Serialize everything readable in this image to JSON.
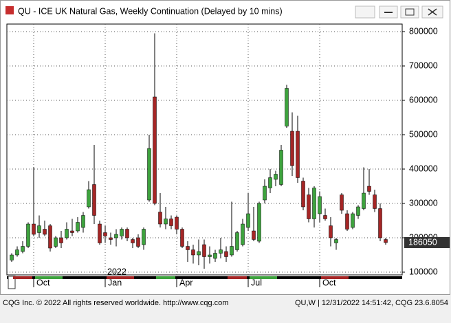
{
  "window_title": "QU - ICE UK Natural Gas, Weekly Continuation (Delayed by 10 mins)",
  "chart_data": {
    "type": "candlestick",
    "categories": [
      null,
      null,
      null,
      null,
      "Oct",
      null,
      null,
      null,
      null,
      null,
      null,
      null,
      null,
      null,
      null,
      null,
      null,
      "Jan",
      null,
      null,
      null,
      null,
      null,
      null,
      null,
      null,
      null,
      null,
      null,
      null,
      "Apr",
      null,
      null,
      null,
      null,
      null,
      null,
      null,
      null,
      null,
      null,
      null,
      null,
      "Jul",
      null,
      null,
      null,
      null,
      null,
      null,
      null,
      null,
      null,
      null,
      null,
      null,
      "Oct",
      null,
      null,
      null,
      null,
      null,
      null,
      null,
      null,
      null,
      null,
      null,
      null
    ],
    "year_label": "2022",
    "open": [
      135000,
      150000,
      160000,
      175000,
      240000,
      215000,
      225000,
      235000,
      175000,
      200000,
      200000,
      220000,
      220000,
      230000,
      290000,
      355000,
      240000,
      215000,
      200000,
      200000,
      205000,
      225000,
      195000,
      200000,
      180000,
      310000,
      610000,
      275000,
      240000,
      255000,
      260000,
      225000,
      175000,
      165000,
      150000,
      180000,
      145000,
      140000,
      155000,
      160000,
      150000,
      165000,
      180000,
      230000,
      220000,
      190000,
      310000,
      345000,
      370000,
      355000,
      525000,
      510000,
      510000,
      365000,
      325000,
      255000,
      270000,
      265000,
      235000,
      185000,
      325000,
      270000,
      230000,
      265000,
      285000,
      350000,
      325000,
      285000,
      195000
    ],
    "high": [
      155000,
      175000,
      190000,
      245000,
      405000,
      265000,
      250000,
      240000,
      205000,
      220000,
      245000,
      255000,
      260000,
      275000,
      365000,
      470000,
      250000,
      235000,
      215000,
      225000,
      230000,
      230000,
      200000,
      210000,
      230000,
      500000,
      795000,
      330000,
      290000,
      265000,
      265000,
      230000,
      190000,
      180000,
      195000,
      195000,
      175000,
      165000,
      200000,
      175000,
      305000,
      220000,
      255000,
      330000,
      290000,
      305000,
      370000,
      400000,
      395000,
      470000,
      645000,
      565000,
      555000,
      375000,
      345000,
      350000,
      335000,
      285000,
      260000,
      200000,
      330000,
      280000,
      275000,
      295000,
      405000,
      400000,
      340000,
      300000,
      200000
    ],
    "low": [
      130000,
      145000,
      155000,
      170000,
      205000,
      200000,
      205000,
      160000,
      170000,
      170000,
      195000,
      205000,
      215000,
      215000,
      285000,
      240000,
      180000,
      185000,
      180000,
      175000,
      195000,
      190000,
      170000,
      170000,
      165000,
      305000,
      295000,
      230000,
      225000,
      225000,
      210000,
      170000,
      130000,
      125000,
      120000,
      110000,
      125000,
      130000,
      140000,
      130000,
      145000,
      160000,
      175000,
      220000,
      190000,
      185000,
      300000,
      330000,
      350000,
      350000,
      520000,
      380000,
      360000,
      280000,
      245000,
      230000,
      245000,
      250000,
      175000,
      165000,
      270000,
      220000,
      225000,
      255000,
      280000,
      325000,
      275000,
      190000,
      180000
    ],
    "close": [
      150000,
      165000,
      175000,
      240000,
      210000,
      235000,
      210000,
      170000,
      200000,
      185000,
      225000,
      215000,
      245000,
      265000,
      340000,
      265000,
      185000,
      205000,
      195000,
      210000,
      225000,
      200000,
      185000,
      175000,
      225000,
      460000,
      300000,
      240000,
      255000,
      235000,
      225000,
      175000,
      165000,
      150000,
      160000,
      145000,
      150000,
      155000,
      165000,
      145000,
      175000,
      215000,
      240000,
      270000,
      195000,
      300000,
      350000,
      375000,
      385000,
      455000,
      635000,
      410000,
      375000,
      290000,
      255000,
      345000,
      320000,
      255000,
      200000,
      195000,
      280000,
      225000,
      270000,
      290000,
      330000,
      335000,
      285000,
      200000,
      186050
    ],
    "up_color": "#3ea33e",
    "down_color": "#a52626",
    "ylim": [
      92000,
      822000
    ],
    "yticks": [
      100000,
      200000,
      300000,
      400000,
      500000,
      600000,
      700000,
      800000
    ],
    "grid": true,
    "last_price": 186050
  },
  "footer": {
    "left": "CQG Inc. © 2022 All rights reserved worldwide. http://www.cqg.com",
    "right": "QU,W | 12/31/2022 14:51:42, CQG 23.6.8054"
  }
}
